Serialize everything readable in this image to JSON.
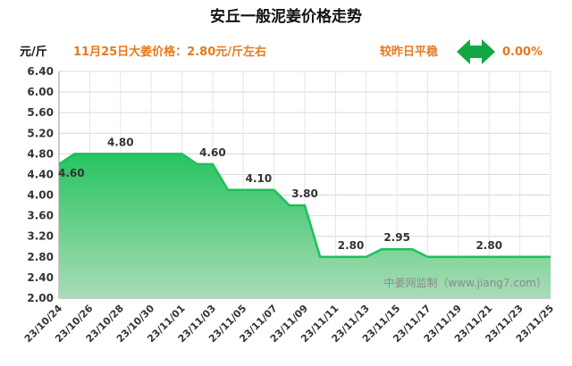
{
  "header": {
    "title": "安丘一般泥姜价格走势",
    "unit": "元/斤",
    "price_note": "11月25日大姜价格：2.80元/斤左右",
    "compare_note": "较昨日平稳",
    "change": "0.00%"
  },
  "watermark": "中姜网监制（www.jiang7.com）",
  "colors": {
    "line": "#1fbf5a",
    "fill_top": "#27c45f",
    "fill_bottom": "#a9dcb7",
    "arrow": "#12a843",
    "accent_text": "#e6791f"
  },
  "chart_data": {
    "type": "area",
    "title": "安丘一般泥姜价格走势",
    "ylabel": "元/斤",
    "xlabel": "",
    "ylim": [
      2.0,
      6.4
    ],
    "y_ticks": [
      "2.00",
      "2.40",
      "2.80",
      "3.20",
      "3.60",
      "4.00",
      "4.40",
      "4.80",
      "5.20",
      "5.60",
      "6.00",
      "6.40"
    ],
    "x_ticks": [
      "23/10/24",
      "23/10/26",
      "23/10/28",
      "23/10/30",
      "23/11/01",
      "23/11/03",
      "23/11/05",
      "23/11/07",
      "23/11/09",
      "23/11/11",
      "23/11/13",
      "23/11/15",
      "23/11/17",
      "23/11/19",
      "23/11/21",
      "23/11/23",
      "23/11/25"
    ],
    "grid": true,
    "legend": "none",
    "x": [
      "23/10/24",
      "23/10/25",
      "23/10/26",
      "23/10/27",
      "23/10/28",
      "23/10/29",
      "23/10/30",
      "23/10/31",
      "23/11/01",
      "23/11/02",
      "23/11/03",
      "23/11/04",
      "23/11/05",
      "23/11/06",
      "23/11/07",
      "23/11/08",
      "23/11/09",
      "23/11/10",
      "23/11/11",
      "23/11/12",
      "23/11/13",
      "23/11/14",
      "23/11/15",
      "23/11/16",
      "23/11/17",
      "23/11/18",
      "23/11/19",
      "23/11/20",
      "23/11/21",
      "23/11/22",
      "23/11/23",
      "23/11/24",
      "23/11/25"
    ],
    "values": [
      4.6,
      4.8,
      4.8,
      4.8,
      4.8,
      4.8,
      4.8,
      4.8,
      4.8,
      4.6,
      4.6,
      4.1,
      4.1,
      4.1,
      4.1,
      3.8,
      3.8,
      2.8,
      2.8,
      2.8,
      2.8,
      2.95,
      2.95,
      2.95,
      2.8,
      2.8,
      2.8,
      2.8,
      2.8,
      2.8,
      2.8,
      2.8,
      2.8
    ],
    "data_labels": [
      {
        "x": "23/10/24",
        "text": "4.60"
      },
      {
        "x": "23/10/28",
        "text": "4.80"
      },
      {
        "x": "23/11/03",
        "text": "4.60"
      },
      {
        "x": "23/11/06",
        "text": "4.10"
      },
      {
        "x": "23/11/09",
        "text": "3.80"
      },
      {
        "x": "23/11/12",
        "text": "2.80"
      },
      {
        "x": "23/11/15",
        "text": "2.95"
      },
      {
        "x": "23/11/21",
        "text": "2.80"
      }
    ]
  }
}
